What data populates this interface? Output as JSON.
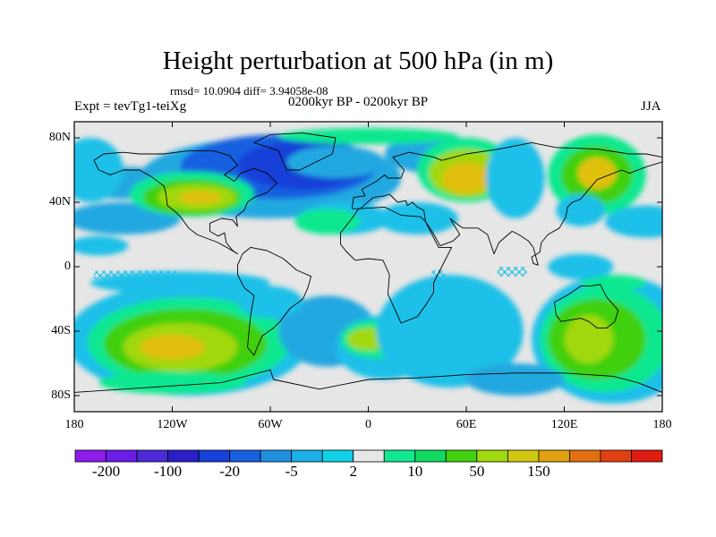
{
  "header": {
    "title": "Height perturbation at 500 hPa (in m)",
    "stats": "rmsd= 10.0904 diff= 3.94058e-08",
    "left_label": "Expt = tevTg1-teiXg",
    "center_label": "0200kyr BP - 0200kyr BP",
    "right_label": "JJA"
  },
  "map": {
    "lat_ticks": [
      "80N",
      "40N",
      "0",
      "40S",
      "80S"
    ],
    "lon_ticks": [
      "180",
      "120W",
      "60W",
      "0",
      "60E",
      "120E",
      "180"
    ],
    "neutral_color": "#e6e6e6",
    "outline_color": "#000000",
    "features": [
      {
        "color": "#1cc0e8",
        "lon": -110,
        "lat": -45,
        "rx": 75,
        "ry": 35
      },
      {
        "color": "#10e890",
        "lon": -110,
        "lat": -47,
        "rx": 62,
        "ry": 28
      },
      {
        "color": "#40d010",
        "lon": -112,
        "lat": -48,
        "rx": 50,
        "ry": 22
      },
      {
        "color": "#a0d810",
        "lon": -115,
        "lat": -50,
        "rx": 35,
        "ry": 15
      },
      {
        "color": "#e0c010",
        "lon": -120,
        "lat": -50,
        "rx": 20,
        "ry": 8
      },
      {
        "color": "#10e890",
        "lon": -120,
        "lat": -72,
        "rx": 45,
        "ry": 7
      },
      {
        "color": "#20a8e0",
        "lon": -25,
        "lat": -40,
        "rx": 30,
        "ry": 22
      },
      {
        "color": "#1cc0e8",
        "lon": 10,
        "lat": -50,
        "rx": 30,
        "ry": 20
      },
      {
        "color": "#10e890",
        "lon": 5,
        "lat": -45,
        "rx": 22,
        "ry": 12
      },
      {
        "color": "#a0d810",
        "lon": 0,
        "lat": -45,
        "rx": 13,
        "ry": 7
      },
      {
        "color": "#1cc0e8",
        "lon": 50,
        "lat": -40,
        "rx": 45,
        "ry": 35
      },
      {
        "color": "#1cc0e8",
        "lon": 150,
        "lat": -45,
        "rx": 50,
        "ry": 40
      },
      {
        "color": "#10e890",
        "lon": 145,
        "lat": -45,
        "rx": 40,
        "ry": 33
      },
      {
        "color": "#40d010",
        "lon": 140,
        "lat": -45,
        "rx": 30,
        "ry": 25
      },
      {
        "color": "#a0d810",
        "lon": 135,
        "lat": -45,
        "rx": 15,
        "ry": 15
      },
      {
        "color": "#20a8e0",
        "lon": 90,
        "lat": -70,
        "rx": 30,
        "ry": 10
      },
      {
        "color": "#1cc0e8",
        "lon": -115,
        "lat": -10,
        "rx": 55,
        "ry": 7
      },
      {
        "color": "#1cc0e8",
        "lon": -165,
        "lat": 13,
        "rx": 18,
        "ry": 6
      },
      {
        "color": "#1cc0e8",
        "lon": -60,
        "lat": -22,
        "rx": 20,
        "ry": 10
      },
      {
        "color": "#20a8e0",
        "lon": -150,
        "lat": 52,
        "rx": 35,
        "ry": 10
      },
      {
        "color": "#20a8e0",
        "lon": -150,
        "lat": 30,
        "rx": 35,
        "ry": 10
      },
      {
        "color": "#20a8e0",
        "lon": -60,
        "lat": 55,
        "rx": 80,
        "ry": 25
      },
      {
        "color": "#1860e0",
        "lon": -55,
        "lat": 62,
        "rx": 60,
        "ry": 20
      },
      {
        "color": "#1840d8",
        "lon": -40,
        "lat": 63,
        "rx": 40,
        "ry": 15
      },
      {
        "color": "#1cc0e8",
        "lon": -170,
        "lat": 60,
        "rx": 20,
        "ry": 20
      },
      {
        "color": "#10e890",
        "lon": -108,
        "lat": 45,
        "rx": 38,
        "ry": 14
      },
      {
        "color": "#40d010",
        "lon": -108,
        "lat": 43,
        "rx": 30,
        "ry": 11
      },
      {
        "color": "#a0d810",
        "lon": -105,
        "lat": 43,
        "rx": 24,
        "ry": 8
      },
      {
        "color": "#e0c010",
        "lon": -103,
        "lat": 43,
        "rx": 13,
        "ry": 4
      },
      {
        "color": "#1cc0e8",
        "lon": -15,
        "lat": 30,
        "rx": 28,
        "ry": 10
      },
      {
        "color": "#10e890",
        "lon": -25,
        "lat": 28,
        "rx": 20,
        "ry": 8
      },
      {
        "color": "#20a8e0",
        "lon": -20,
        "lat": 65,
        "rx": 30,
        "ry": 10
      },
      {
        "color": "#1cc0e8",
        "lon": 30,
        "lat": 30,
        "rx": 25,
        "ry": 10
      },
      {
        "color": "#20a8e0",
        "lon": 40,
        "lat": 70,
        "rx": 30,
        "ry": 12
      },
      {
        "color": "#10e890",
        "lon": 60,
        "lat": 60,
        "rx": 30,
        "ry": 20
      },
      {
        "color": "#a0d810",
        "lon": 60,
        "lat": 58,
        "rx": 23,
        "ry": 15
      },
      {
        "color": "#e0c010",
        "lon": 60,
        "lat": 55,
        "rx": 15,
        "ry": 10
      },
      {
        "color": "#10e890",
        "lon": 0,
        "lat": 81,
        "rx": 55,
        "ry": 5
      },
      {
        "color": "#1cc0e8",
        "lon": 90,
        "lat": 55,
        "rx": 18,
        "ry": 25
      },
      {
        "color": "#10e890",
        "lon": 140,
        "lat": 57,
        "rx": 30,
        "ry": 25
      },
      {
        "color": "#40d010",
        "lon": 140,
        "lat": 57,
        "rx": 22,
        "ry": 18
      },
      {
        "color": "#e0c010",
        "lon": 140,
        "lat": 58,
        "rx": 12,
        "ry": 10
      },
      {
        "color": "#1cc0e8",
        "lon": 170,
        "lat": 28,
        "rx": 25,
        "ry": 10
      },
      {
        "color": "#1cc0e8",
        "lon": 130,
        "lat": 35,
        "rx": 15,
        "ry": 10
      },
      {
        "color": "#10e890",
        "lon": 150,
        "lat": -10,
        "rx": 20,
        "ry": 5
      },
      {
        "color": "#1cc0e8",
        "lon": 130,
        "lat": 0,
        "rx": 20,
        "ry": 8
      }
    ],
    "outlines": [
      [
        [
          -168,
          66
        ],
        [
          -162,
          70
        ],
        [
          -150,
          71
        ],
        [
          -140,
          70
        ],
        [
          -125,
          70
        ],
        [
          -110,
          72
        ],
        [
          -95,
          72
        ],
        [
          -85,
          69
        ],
        [
          -80,
          63
        ],
        [
          -88,
          57
        ],
        [
          -82,
          53
        ],
        [
          -78,
          58
        ],
        [
          -70,
          61
        ],
        [
          -62,
          58
        ],
        [
          -56,
          52
        ],
        [
          -62,
          46
        ],
        [
          -70,
          43
        ],
        [
          -74,
          40
        ],
        [
          -76,
          35
        ],
        [
          -81,
          31
        ],
        [
          -80,
          25
        ],
        [
          -83,
          29
        ],
        [
          -90,
          30
        ],
        [
          -97,
          27
        ],
        [
          -97,
          22
        ],
        [
          -92,
          19
        ],
        [
          -88,
          21
        ],
        [
          -87,
          15
        ],
        [
          -83,
          10
        ],
        [
          -80,
          8
        ],
        [
          -85,
          11
        ],
        [
          -92,
          15
        ],
        [
          -105,
          20
        ],
        [
          -110,
          24
        ],
        [
          -115,
          31
        ],
        [
          -118,
          34
        ],
        [
          -123,
          38
        ],
        [
          -124,
          46
        ],
        [
          -125,
          50
        ],
        [
          -133,
          56
        ],
        [
          -140,
          60
        ],
        [
          -150,
          60
        ],
        [
          -158,
          57
        ],
        [
          -165,
          60
        ],
        [
          -168,
          66
        ]
      ],
      [
        [
          -77,
          8
        ],
        [
          -72,
          12
        ],
        [
          -62,
          10
        ],
        [
          -52,
          5
        ],
        [
          -44,
          -2
        ],
        [
          -35,
          -6
        ],
        [
          -37,
          -13
        ],
        [
          -40,
          -20
        ],
        [
          -48,
          -26
        ],
        [
          -54,
          -34
        ],
        [
          -58,
          -38
        ],
        [
          -65,
          -43
        ],
        [
          -68,
          -50
        ],
        [
          -70,
          -55
        ],
        [
          -74,
          -50
        ],
        [
          -73,
          -40
        ],
        [
          -72,
          -30
        ],
        [
          -70,
          -18
        ],
        [
          -76,
          -13
        ],
        [
          -80,
          -5
        ],
        [
          -80,
          1
        ],
        [
          -77,
          8
        ]
      ],
      [
        [
          -50,
          60
        ],
        [
          -42,
          60
        ],
        [
          -22,
          70
        ],
        [
          -20,
          80
        ],
        [
          -40,
          83
        ],
        [
          -60,
          82
        ],
        [
          -70,
          77
        ],
        [
          -55,
          72
        ],
        [
          -50,
          60
        ]
      ],
      [
        [
          -17,
          14
        ],
        [
          -17,
          21
        ],
        [
          -10,
          30
        ],
        [
          -6,
          36
        ],
        [
          10,
          37
        ],
        [
          20,
          32
        ],
        [
          32,
          31
        ],
        [
          35,
          28
        ],
        [
          43,
          12
        ],
        [
          51,
          12
        ],
        [
          45,
          0
        ],
        [
          40,
          -10
        ],
        [
          40,
          -16
        ],
        [
          35,
          -24
        ],
        [
          30,
          -31
        ],
        [
          20,
          -35
        ],
        [
          17,
          -28
        ],
        [
          12,
          -17
        ],
        [
          13,
          -5
        ],
        [
          9,
          4
        ],
        [
          0,
          5
        ],
        [
          -8,
          4
        ],
        [
          -14,
          10
        ],
        [
          -17,
          14
        ]
      ],
      [
        [
          -10,
          36
        ],
        [
          -9,
          43
        ],
        [
          -2,
          44
        ],
        [
          -4,
          48
        ],
        [
          5,
          53
        ],
        [
          10,
          57
        ],
        [
          12,
          55
        ],
        [
          20,
          55
        ],
        [
          22,
          60
        ],
        [
          15,
          68
        ],
        [
          25,
          71
        ],
        [
          40,
          68
        ],
        [
          45,
          66
        ],
        [
          60,
          70
        ],
        [
          80,
          73
        ],
        [
          100,
          77
        ],
        [
          115,
          74
        ],
        [
          140,
          73
        ],
        [
          160,
          70
        ],
        [
          170,
          70
        ],
        [
          180,
          68
        ],
        [
          180,
          65
        ],
        [
          170,
          62
        ],
        [
          160,
          58
        ],
        [
          155,
          60
        ],
        [
          140,
          54
        ],
        [
          135,
          48
        ],
        [
          130,
          42
        ],
        [
          125,
          40
        ],
        [
          122,
          37
        ],
        [
          121,
          31
        ],
        [
          117,
          24
        ],
        [
          110,
          20
        ],
        [
          106,
          15
        ],
        [
          105,
          9
        ],
        [
          100,
          6
        ],
        [
          101,
          2
        ],
        [
          104,
          1
        ],
        [
          101,
          12
        ],
        [
          98,
          16
        ],
        [
          92,
          20
        ],
        [
          88,
          22
        ],
        [
          80,
          15
        ],
        [
          77,
          8
        ],
        [
          73,
          20
        ],
        [
          67,
          24
        ],
        [
          58,
          24
        ],
        [
          55,
          26
        ],
        [
          50,
          30
        ],
        [
          56,
          20
        ],
        [
          52,
          16
        ],
        [
          44,
          13
        ],
        [
          39,
          22
        ],
        [
          35,
          28
        ],
        [
          34,
          35
        ],
        [
          30,
          37
        ],
        [
          27,
          40
        ],
        [
          24,
          38
        ],
        [
          23,
          41
        ],
        [
          18,
          40
        ],
        [
          13,
          45
        ],
        [
          10,
          44
        ],
        [
          3,
          43
        ],
        [
          -5,
          36
        ],
        [
          -10,
          36
        ]
      ],
      [
        [
          114,
          -22
        ],
        [
          123,
          -17
        ],
        [
          130,
          -12
        ],
        [
          136,
          -12
        ],
        [
          142,
          -11
        ],
        [
          146,
          -19
        ],
        [
          153,
          -27
        ],
        [
          151,
          -34
        ],
        [
          146,
          -38
        ],
        [
          140,
          -38
        ],
        [
          135,
          -34
        ],
        [
          130,
          -32
        ],
        [
          118,
          -34
        ],
        [
          115,
          -30
        ],
        [
          114,
          -22
        ]
      ],
      [
        [
          -180,
          -78
        ],
        [
          -150,
          -76
        ],
        [
          -120,
          -74
        ],
        [
          -90,
          -72
        ],
        [
          -60,
          -64
        ],
        [
          -58,
          -70
        ],
        [
          -30,
          -76
        ],
        [
          0,
          -70
        ],
        [
          30,
          -69
        ],
        [
          60,
          -67
        ],
        [
          90,
          -66
        ],
        [
          120,
          -66
        ],
        [
          150,
          -68
        ],
        [
          165,
          -72
        ],
        [
          180,
          -78
        ]
      ]
    ],
    "hatches": [
      {
        "lon": -143,
        "lat": -5,
        "w": 50,
        "h": 5
      },
      {
        "lon": 88,
        "lat": -3,
        "w": 18,
        "h": 6
      },
      {
        "lon": 43,
        "lat": -5,
        "w": 8,
        "h": 6
      }
    ]
  },
  "colorbar": {
    "colors": [
      "#8c1ce8",
      "#6a1ce8",
      "#4c2ad8",
      "#2a20c8",
      "#1840d8",
      "#1860e0",
      "#2090e0",
      "#1cb0e8",
      "#10d0e8",
      "#e6e6e6",
      "#10e890",
      "#10d860",
      "#40d010",
      "#a0d810",
      "#d0c810",
      "#e0a010",
      "#e07010",
      "#e04010",
      "#e01a10"
    ],
    "labels": [
      "-200",
      "-100",
      "-20",
      "-5",
      "2",
      "10",
      "50",
      "150"
    ]
  }
}
